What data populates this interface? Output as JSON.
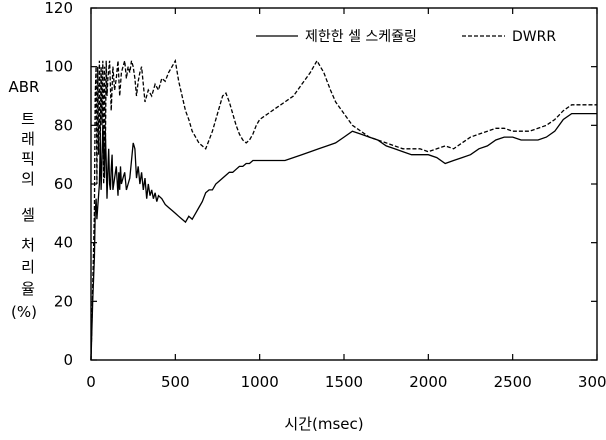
{
  "chart_data": {
    "type": "line",
    "title": "",
    "xlabel": "시간(msec)",
    "ylabel_lines": [
      "ABR",
      "트",
      "래",
      "픽",
      "의",
      "셀",
      "처",
      "리",
      "율",
      "(%)"
    ],
    "xlim": [
      0,
      3000
    ],
    "ylim": [
      0,
      120
    ],
    "xticks": [
      0,
      500,
      1000,
      1500,
      2000,
      2500,
      3000
    ],
    "yticks": [
      0,
      20,
      40,
      60,
      80,
      100,
      120
    ],
    "grid": false,
    "legend_position": "top-right",
    "series": [
      {
        "name": "제한한 셀 스케쥴링",
        "style": "solid",
        "x": [
          0,
          10,
          20,
          25,
          30,
          35,
          40,
          50,
          55,
          60,
          65,
          70,
          75,
          80,
          85,
          90,
          95,
          100,
          105,
          110,
          115,
          120,
          125,
          130,
          140,
          150,
          160,
          165,
          170,
          175,
          180,
          190,
          200,
          210,
          220,
          230,
          240,
          250,
          260,
          270,
          280,
          290,
          300,
          310,
          320,
          330,
          340,
          350,
          360,
          370,
          380,
          390,
          400,
          420,
          440,
          460,
          480,
          500,
          520,
          540,
          560,
          580,
          600,
          620,
          640,
          660,
          680,
          700,
          720,
          740,
          760,
          780,
          800,
          820,
          840,
          860,
          880,
          900,
          920,
          940,
          960,
          980,
          1000,
          1050,
          1100,
          1150,
          1200,
          1250,
          1300,
          1350,
          1400,
          1450,
          1500,
          1550,
          1600,
          1650,
          1700,
          1750,
          1800,
          1850,
          1900,
          1950,
          2000,
          2050,
          2100,
          2150,
          2200,
          2250,
          2300,
          2350,
          2400,
          2450,
          2500,
          2550,
          2600,
          2650,
          2700,
          2750,
          2800,
          2850,
          2900,
          2950,
          3000
        ],
        "y": [
          0,
          20,
          35,
          50,
          55,
          48,
          52,
          60,
          75,
          58,
          68,
          80,
          70,
          62,
          78,
          68,
          55,
          65,
          72,
          60,
          58,
          65,
          70,
          58,
          62,
          66,
          56,
          64,
          58,
          66,
          60,
          62,
          64,
          58,
          60,
          62,
          68,
          74,
          72,
          62,
          66,
          60,
          64,
          58,
          62,
          55,
          60,
          56,
          58,
          55,
          57,
          54,
          56,
          55,
          53,
          52,
          51,
          50,
          49,
          48,
          47,
          49,
          48,
          50,
          52,
          54,
          57,
          58,
          58,
          60,
          61,
          62,
          63,
          64,
          64,
          65,
          66,
          66,
          67,
          67,
          68,
          68,
          68,
          68,
          68,
          68,
          69,
          70,
          71,
          72,
          73,
          74,
          76,
          78,
          77,
          76,
          75,
          73,
          72,
          71,
          70,
          70,
          70,
          69,
          67,
          68,
          69,
          70,
          72,
          73,
          75,
          76,
          76,
          75,
          75,
          75,
          76,
          78,
          82,
          84,
          84,
          84,
          84
        ]
      },
      {
        "name": "DWRR",
        "style": "dashed",
        "x": [
          0,
          10,
          20,
          25,
          30,
          35,
          40,
          45,
          50,
          55,
          60,
          65,
          70,
          75,
          80,
          85,
          90,
          95,
          100,
          110,
          120,
          130,
          140,
          150,
          160,
          170,
          180,
          190,
          200,
          210,
          220,
          230,
          240,
          250,
          260,
          270,
          280,
          290,
          300,
          320,
          340,
          360,
          380,
          400,
          420,
          440,
          460,
          480,
          500,
          520,
          540,
          560,
          580,
          600,
          620,
          640,
          660,
          680,
          700,
          720,
          740,
          760,
          780,
          800,
          820,
          840,
          860,
          880,
          900,
          920,
          940,
          960,
          980,
          1000,
          1050,
          1100,
          1150,
          1200,
          1250,
          1300,
          1320,
          1340,
          1360,
          1380,
          1400,
          1420,
          1450,
          1500,
          1550,
          1600,
          1650,
          1700,
          1750,
          1800,
          1850,
          1900,
          1950,
          2000,
          2050,
          2100,
          2150,
          2200,
          2250,
          2300,
          2350,
          2400,
          2450,
          2500,
          2550,
          2600,
          2650,
          2700,
          2750,
          2800,
          2850,
          2900,
          2950,
          3000
        ],
        "y": [
          0,
          25,
          50,
          90,
          100,
          60,
          100,
          70,
          102,
          75,
          100,
          80,
          102,
          60,
          100,
          70,
          102,
          90,
          96,
          102,
          85,
          100,
          92,
          96,
          102,
          90,
          98,
          100,
          102,
          96,
          100,
          98,
          102,
          100,
          96,
          90,
          95,
          98,
          100,
          88,
          92,
          90,
          94,
          92,
          96,
          95,
          98,
          100,
          102,
          95,
          90,
          85,
          82,
          78,
          76,
          74,
          73,
          72,
          75,
          78,
          82,
          86,
          90,
          91,
          88,
          84,
          80,
          77,
          75,
          74,
          75,
          77,
          80,
          82,
          84,
          86,
          88,
          90,
          94,
          98,
          100,
          102,
          100,
          98,
          95,
          92,
          88,
          84,
          80,
          78,
          76,
          75,
          74,
          73,
          72,
          72,
          72,
          71,
          72,
          73,
          72,
          74,
          76,
          77,
          78,
          79,
          79,
          78,
          78,
          78,
          79,
          80,
          82,
          85,
          87,
          87,
          87,
          87
        ]
      }
    ]
  }
}
